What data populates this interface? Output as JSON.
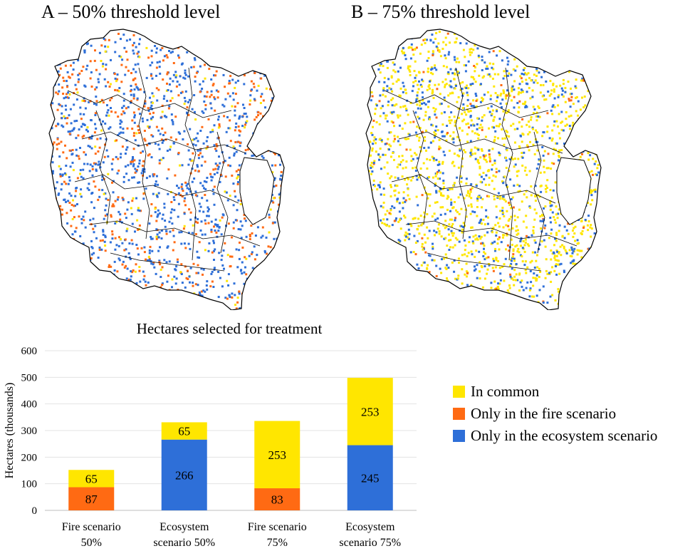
{
  "panels": {
    "a_title": "A – 50% threshold level",
    "b_title": "B – 75% threshold level"
  },
  "colors": {
    "in_common": "#FFE600",
    "fire_only": "#FF6A13",
    "eco_only": "#2E6FD8"
  },
  "chart_data": {
    "type": "bar",
    "stacked": true,
    "title": "Hectares selected for treatment",
    "ylabel": "Hectares (thousands)",
    "xlabel": "",
    "ylim": [
      0,
      600
    ],
    "yticks": [
      0,
      100,
      200,
      300,
      400,
      500,
      600
    ],
    "grid": true,
    "legend_position": "right",
    "categories": [
      [
        "Fire scenario",
        "50%"
      ],
      [
        "Ecosystem",
        "scenario 50%"
      ],
      [
        "Fire scenario",
        "75%"
      ],
      [
        "Ecosystem",
        "scenario 75%"
      ]
    ],
    "series": [
      {
        "name": "Only in the ecosystem scenario",
        "color": "#2E6FD8",
        "values": [
          0,
          266,
          0,
          245
        ]
      },
      {
        "name": "Only in the fire scenario",
        "color": "#FF6A13",
        "values": [
          87,
          0,
          83,
          0
        ]
      },
      {
        "name": "In common",
        "color": "#FFE600",
        "values": [
          65,
          65,
          253,
          253
        ]
      }
    ],
    "legend_order": [
      "In common",
      "Only in the fire scenario",
      "Only in the ecosystem scenario"
    ]
  }
}
